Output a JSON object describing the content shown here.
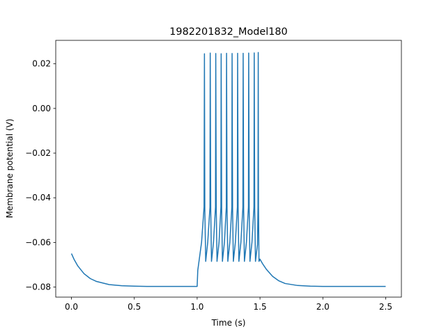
{
  "chart_data": {
    "type": "line",
    "title": "1982201832_Model180",
    "xlabel": "Time (s)",
    "ylabel": "Membrane potential (V)",
    "xlim": [
      -0.125,
      2.625
    ],
    "ylim": [
      -0.0845,
      0.0305
    ],
    "xticks": [
      0.0,
      0.5,
      1.0,
      1.5,
      2.0,
      2.5
    ],
    "xtick_labels": [
      "0.0",
      "0.5",
      "1.0",
      "1.5",
      "2.0",
      "2.5"
    ],
    "yticks": [
      -0.08,
      -0.06,
      -0.04,
      -0.02,
      0.0,
      0.02
    ],
    "ytick_labels": [
      "−0.08",
      "−0.06",
      "−0.04",
      "−0.02",
      "0.00",
      "0.02"
    ],
    "grid": false,
    "series": [
      {
        "color": "#1f77b4",
        "x": [
          0.0,
          0.02,
          0.05,
          0.1,
          0.15,
          0.2,
          0.3,
          0.4,
          0.5,
          0.6,
          0.7,
          0.8,
          0.9,
          1.0,
          1.005,
          1.035,
          1.055,
          1.058,
          1.061,
          1.068,
          1.084,
          1.102,
          1.104,
          1.108,
          1.114,
          1.13,
          1.146,
          1.148,
          1.152,
          1.158,
          1.174,
          1.189,
          1.191,
          1.195,
          1.201,
          1.217,
          1.232,
          1.234,
          1.238,
          1.244,
          1.26,
          1.276,
          1.278,
          1.282,
          1.288,
          1.304,
          1.32,
          1.322,
          1.326,
          1.332,
          1.348,
          1.364,
          1.366,
          1.37,
          1.376,
          1.392,
          1.408,
          1.41,
          1.414,
          1.42,
          1.436,
          1.452,
          1.454,
          1.458,
          1.464,
          1.48,
          1.484,
          1.486,
          1.488,
          1.492,
          1.5,
          1.52,
          1.55,
          1.6,
          1.65,
          1.7,
          1.8,
          1.9,
          2.0,
          2.1,
          2.2,
          2.3,
          2.4,
          2.5
        ],
        "y": [
          -0.065,
          -0.0675,
          -0.0705,
          -0.074,
          -0.0762,
          -0.0775,
          -0.0789,
          -0.0794,
          -0.0796,
          -0.0797,
          -0.0797,
          -0.0797,
          -0.0797,
          -0.0797,
          -0.0725,
          -0.06,
          -0.0442,
          0.0245,
          -0.045,
          -0.0685,
          -0.06,
          -0.0442,
          0.0248,
          -0.045,
          -0.0685,
          -0.06,
          -0.0442,
          0.0246,
          -0.045,
          -0.0685,
          -0.06,
          -0.0442,
          0.0245,
          -0.045,
          -0.0685,
          -0.06,
          -0.0442,
          0.0247,
          -0.045,
          -0.0685,
          -0.06,
          -0.0442,
          0.0246,
          -0.045,
          -0.0685,
          -0.06,
          -0.0442,
          0.0247,
          -0.045,
          -0.0685,
          -0.06,
          -0.0442,
          0.0247,
          -0.045,
          -0.0685,
          -0.06,
          -0.0442,
          0.0248,
          -0.045,
          -0.0685,
          -0.06,
          -0.0442,
          0.0249,
          -0.045,
          -0.0685,
          -0.061,
          -0.0442,
          0.0251,
          -0.044,
          -0.0685,
          -0.0675,
          -0.0695,
          -0.072,
          -0.0752,
          -0.0772,
          -0.0784,
          -0.0793,
          -0.0796,
          -0.0797,
          -0.0797,
          -0.0797,
          -0.0797,
          -0.0797,
          -0.0797
        ]
      }
    ]
  }
}
